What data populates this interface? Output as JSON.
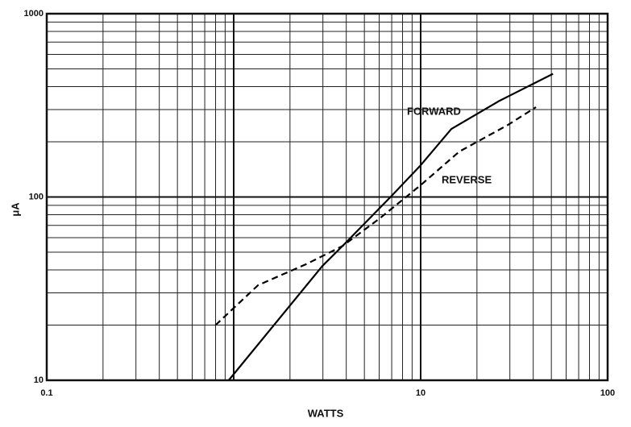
{
  "chart_data": {
    "type": "line",
    "x_label": "WATTS",
    "y_label": "μA",
    "annotations": [
      "FORWARD",
      "REVERSE"
    ],
    "xlim": [
      0.1,
      100
    ],
    "ylim": [
      10,
      1000
    ],
    "log_x": true,
    "log_y": true,
    "grid": true,
    "xticks": [
      0.1,
      10,
      100
    ],
    "yticks": [
      10,
      100,
      1000
    ],
    "series": [
      {
        "name": "FORWARD",
        "color": "#000000",
        "dash": "solid",
        "x": [
          0.94,
          2.98,
          3.82,
          6.9,
          10,
          14.6,
          26.4,
          51
        ],
        "values": [
          10,
          42,
          54,
          100,
          149,
          235,
          335,
          470
        ]
      },
      {
        "name": "REVERSE",
        "color": "#000000",
        "dash": "dashed",
        "x": [
          0.8,
          1.35,
          2.44,
          3.82,
          5.97,
          10,
          16.1,
          29.2,
          41.4
        ],
        "values": [
          20,
          33,
          43,
          54,
          75.7,
          116,
          177,
          247,
          309
        ]
      }
    ]
  }
}
